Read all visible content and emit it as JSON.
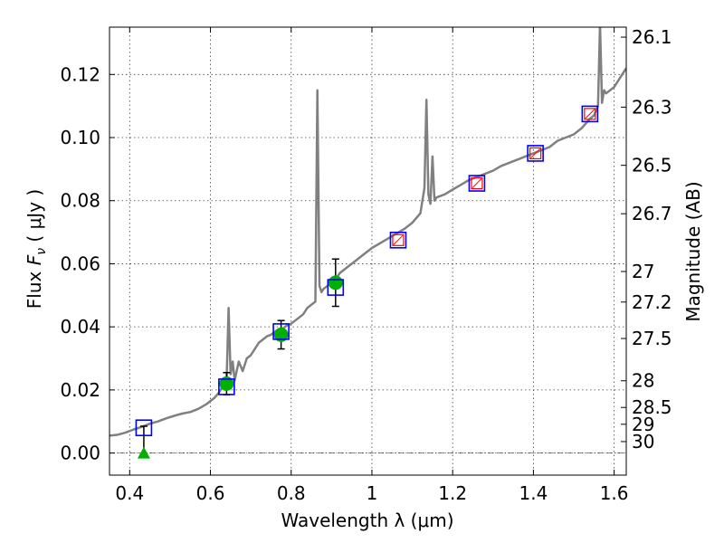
{
  "chart_data": {
    "type": "scatter",
    "xlabel": "Wavelength  λ (μm)",
    "ylabel": "Flux  F_ν  ( μJy )",
    "ylabel_parts": {
      "prefix": "Flux  ",
      "var": "F",
      "sub": "ν",
      "suffix": "  ( μJy )"
    },
    "y2label": "Magnitude (AB)",
    "xlim": [
      0.35,
      1.63
    ],
    "ylim": [
      -0.007,
      0.135
    ],
    "xticks": [
      0.4,
      0.6,
      0.8,
      1.0,
      1.2,
      1.4,
      1.6
    ],
    "xtick_labels": [
      "0.4",
      "0.6",
      "0.8",
      "1",
      "1.2",
      "1.4",
      "1.6"
    ],
    "yticks": [
      0.0,
      0.02,
      0.04,
      0.06,
      0.08,
      0.1,
      0.12
    ],
    "ytick_labels": [
      "0.00",
      "0.02",
      "0.04",
      "0.06",
      "0.08",
      "0.10",
      "0.12"
    ],
    "mag_ticks": [
      26.1,
      26.3,
      26.5,
      26.7,
      27,
      27.2,
      27.5,
      28,
      28.5,
      29,
      30
    ],
    "mag_tick_labels": [
      "26.1",
      "26.3",
      "26.5",
      "26.7",
      "27",
      "27.2",
      "27.5",
      "28",
      "28.5",
      "29",
      "30"
    ],
    "grid": true,
    "colors": {
      "spectrum": "#808080",
      "model": "#0000ff",
      "synthetic": "#ff0000",
      "observed": "#00b000",
      "errorbar": "#000000"
    },
    "series": [
      {
        "kind": "spectrum",
        "x": [
          0.35,
          0.37,
          0.39,
          0.41,
          0.43,
          0.45,
          0.47,
          0.49,
          0.51,
          0.53,
          0.55,
          0.57,
          0.59,
          0.61,
          0.62,
          0.63,
          0.64,
          0.645,
          0.65,
          0.655,
          0.66,
          0.67,
          0.68,
          0.69,
          0.7,
          0.71,
          0.72,
          0.73,
          0.74,
          0.75,
          0.76,
          0.77,
          0.78,
          0.79,
          0.8,
          0.81,
          0.82,
          0.83,
          0.84,
          0.85,
          0.86,
          0.865,
          0.87,
          0.875,
          0.88,
          0.89,
          0.9,
          0.91,
          0.92,
          0.94,
          0.96,
          0.98,
          1.0,
          1.02,
          1.04,
          1.06,
          1.08,
          1.1,
          1.12,
          1.13,
          1.135,
          1.14,
          1.145,
          1.15,
          1.155,
          1.16,
          1.18,
          1.2,
          1.22,
          1.24,
          1.26,
          1.28,
          1.3,
          1.32,
          1.34,
          1.36,
          1.38,
          1.4,
          1.42,
          1.44,
          1.46,
          1.48,
          1.5,
          1.52,
          1.54,
          1.55,
          1.56,
          1.565,
          1.57,
          1.575,
          1.58,
          1.6,
          1.63
        ],
        "y": [
          0.0055,
          0.0058,
          0.0065,
          0.0075,
          0.0083,
          0.0093,
          0.01,
          0.011,
          0.0118,
          0.0125,
          0.013,
          0.014,
          0.0155,
          0.0175,
          0.019,
          0.021,
          0.023,
          0.046,
          0.025,
          0.029,
          0.023,
          0.029,
          0.026,
          0.03,
          0.031,
          0.033,
          0.035,
          0.036,
          0.037,
          0.0375,
          0.0385,
          0.039,
          0.0395,
          0.0405,
          0.041,
          0.042,
          0.043,
          0.044,
          0.046,
          0.047,
          0.048,
          0.115,
          0.053,
          0.051,
          0.052,
          0.053,
          0.054,
          0.055,
          0.057,
          0.059,
          0.061,
          0.063,
          0.065,
          0.0665,
          0.068,
          0.0695,
          0.071,
          0.073,
          0.076,
          0.084,
          0.112,
          0.082,
          0.079,
          0.094,
          0.08,
          0.081,
          0.082,
          0.0835,
          0.085,
          0.0865,
          0.0875,
          0.0885,
          0.0895,
          0.091,
          0.092,
          0.093,
          0.094,
          0.095,
          0.096,
          0.097,
          0.099,
          0.1,
          0.101,
          0.103,
          0.106,
          0.107,
          0.11,
          0.136,
          0.111,
          0.115,
          0.114,
          0.116,
          0.122
        ]
      },
      {
        "kind": "model-photometry",
        "marker": "open-square",
        "x": [
          0.435,
          0.64,
          0.775,
          0.91,
          1.065,
          1.26,
          1.405,
          1.54
        ],
        "y": [
          0.008,
          0.021,
          0.0385,
          0.0525,
          0.0675,
          0.0855,
          0.095,
          0.1075
        ]
      },
      {
        "kind": "synthetic-photometry",
        "marker": "open-square-red",
        "x": [
          1.065,
          1.26,
          1.405,
          1.54
        ],
        "y": [
          0.0675,
          0.0855,
          0.095,
          0.1075
        ]
      },
      {
        "kind": "observed-photometry",
        "marker": "filled-circle",
        "x": [
          0.64,
          0.775,
          0.91
        ],
        "y": [
          0.022,
          0.0375,
          0.054
        ],
        "yerr": [
          0.0035,
          0.0045,
          0.0075
        ]
      },
      {
        "kind": "upper-limit",
        "marker": "filled-triangle",
        "x": [
          0.435
        ],
        "y": [
          0.0
        ],
        "yerr_upper": [
          0.0085
        ]
      }
    ]
  }
}
